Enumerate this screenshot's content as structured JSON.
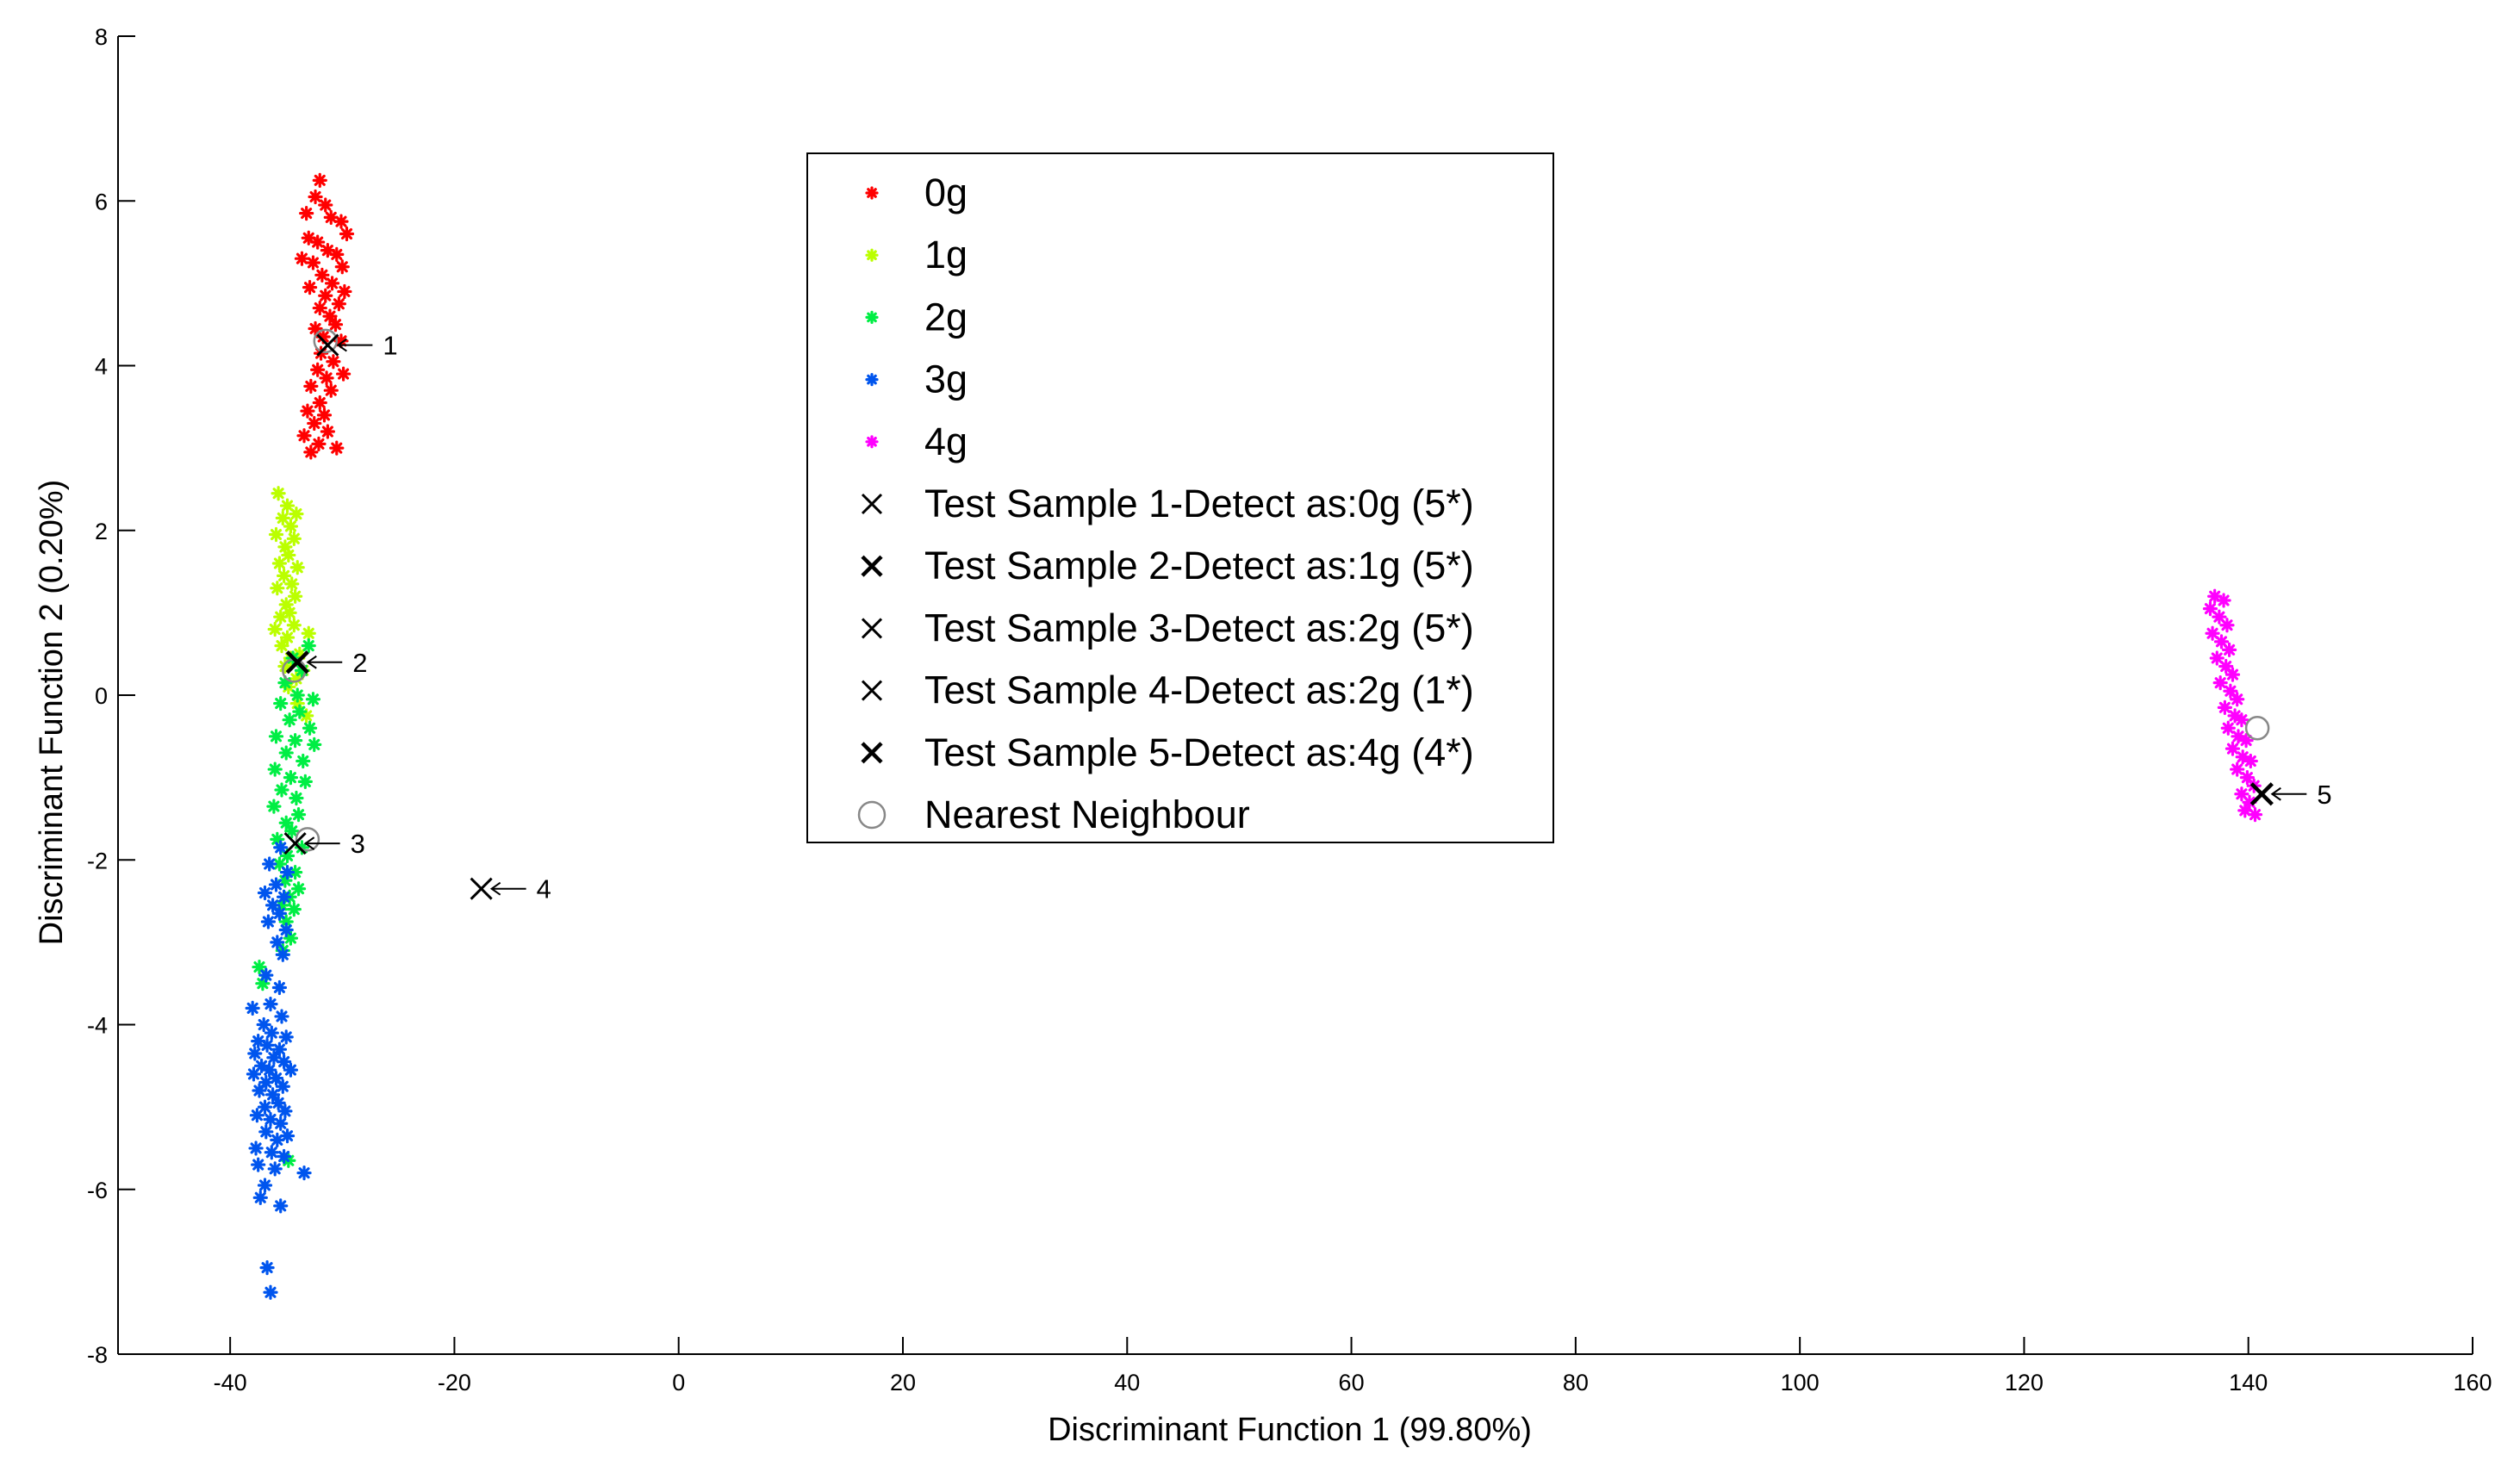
{
  "chart_data": {
    "type": "scatter",
    "title": "",
    "xlabel": "Discriminant Function 1 (99.80%)",
    "ylabel": "Discriminant Function 2 (0.20%)",
    "xlim": [
      -50,
      160
    ],
    "ylim": [
      -8,
      8
    ],
    "xticks": [
      -40,
      -20,
      0,
      20,
      40,
      60,
      80,
      100,
      120,
      140,
      160
    ],
    "yticks": [
      -8,
      -6,
      -4,
      -2,
      0,
      2,
      4,
      6,
      8
    ],
    "grid": false,
    "legend_position": "top-center",
    "series": [
      {
        "name": "0g",
        "color": "#ff0000",
        "marker": "asterisk",
        "points": [
          [
            -32.0,
            6.25
          ],
          [
            -32.4,
            6.05
          ],
          [
            -31.5,
            5.95
          ],
          [
            -33.2,
            5.85
          ],
          [
            -30.1,
            5.75
          ],
          [
            -31.0,
            5.8
          ],
          [
            -29.6,
            5.6
          ],
          [
            -33.0,
            5.55
          ],
          [
            -32.2,
            5.5
          ],
          [
            -31.3,
            5.4
          ],
          [
            -30.5,
            5.35
          ],
          [
            -33.6,
            5.3
          ],
          [
            -32.6,
            5.25
          ],
          [
            -30.0,
            5.2
          ],
          [
            -31.8,
            5.1
          ],
          [
            -30.9,
            5.0
          ],
          [
            -32.9,
            4.95
          ],
          [
            -29.8,
            4.9
          ],
          [
            -31.5,
            4.85
          ],
          [
            -30.3,
            4.75
          ],
          [
            -32.0,
            4.7
          ],
          [
            -31.1,
            4.6
          ],
          [
            -30.6,
            4.5
          ],
          [
            -32.4,
            4.45
          ],
          [
            -31.7,
            4.35
          ],
          [
            -30.1,
            4.3
          ],
          [
            -31.9,
            4.15
          ],
          [
            -30.8,
            4.05
          ],
          [
            -32.2,
            3.95
          ],
          [
            -29.9,
            3.9
          ],
          [
            -31.4,
            3.85
          ],
          [
            -32.8,
            3.75
          ],
          [
            -31.0,
            3.7
          ],
          [
            -32.0,
            3.55
          ],
          [
            -33.1,
            3.45
          ],
          [
            -31.6,
            3.4
          ],
          [
            -32.5,
            3.3
          ],
          [
            -31.3,
            3.2
          ],
          [
            -33.4,
            3.15
          ],
          [
            -32.1,
            3.05
          ],
          [
            -30.5,
            3.0
          ],
          [
            -32.8,
            2.95
          ]
        ]
      },
      {
        "name": "1g",
        "color": "#bbff00",
        "marker": "asterisk",
        "points": [
          [
            -35.7,
            2.45
          ],
          [
            -34.9,
            2.3
          ],
          [
            -34.1,
            2.2
          ],
          [
            -35.3,
            2.15
          ],
          [
            -34.6,
            2.05
          ],
          [
            -35.9,
            1.95
          ],
          [
            -34.3,
            1.9
          ],
          [
            -35.1,
            1.8
          ],
          [
            -34.8,
            1.7
          ],
          [
            -35.6,
            1.6
          ],
          [
            -34.0,
            1.55
          ],
          [
            -35.2,
            1.45
          ],
          [
            -34.5,
            1.35
          ],
          [
            -35.8,
            1.3
          ],
          [
            -34.2,
            1.2
          ],
          [
            -35.0,
            1.1
          ],
          [
            -34.7,
            1.0
          ],
          [
            -35.5,
            0.95
          ],
          [
            -34.3,
            0.85
          ],
          [
            -36.0,
            0.8
          ],
          [
            -33.0,
            0.75
          ],
          [
            -34.9,
            0.7
          ],
          [
            -35.4,
            0.6
          ],
          [
            -33.8,
            0.5
          ],
          [
            -34.6,
            0.45
          ],
          [
            -35.1,
            0.35
          ],
          [
            -33.5,
            0.3
          ],
          [
            -34.1,
            0.2
          ],
          [
            -34.8,
            0.1
          ],
          [
            -34.0,
            -0.1
          ],
          [
            -33.2,
            -0.25
          ]
        ]
      },
      {
        "name": "2g",
        "color": "#00ee44",
        "marker": "asterisk",
        "points": [
          [
            -33.0,
            0.6
          ],
          [
            -34.4,
            0.45
          ],
          [
            -33.6,
            0.3
          ],
          [
            -35.1,
            0.15
          ],
          [
            -34.0,
            0.0
          ],
          [
            -32.6,
            -0.05
          ],
          [
            -35.5,
            -0.1
          ],
          [
            -33.8,
            -0.2
          ],
          [
            -34.7,
            -0.3
          ],
          [
            -32.9,
            -0.4
          ],
          [
            -35.9,
            -0.5
          ],
          [
            -34.2,
            -0.55
          ],
          [
            -32.5,
            -0.6
          ],
          [
            -35.0,
            -0.7
          ],
          [
            -33.5,
            -0.8
          ],
          [
            -36.0,
            -0.9
          ],
          [
            -34.6,
            -1.0
          ],
          [
            -33.3,
            -1.05
          ],
          [
            -35.4,
            -1.15
          ],
          [
            -34.1,
            -1.25
          ],
          [
            -36.1,
            -1.35
          ],
          [
            -33.9,
            -1.45
          ],
          [
            -35.0,
            -1.55
          ],
          [
            -34.5,
            -1.65
          ],
          [
            -35.8,
            -1.75
          ],
          [
            -33.6,
            -1.85
          ],
          [
            -34.9,
            -1.95
          ],
          [
            -35.6,
            -2.05
          ],
          [
            -34.2,
            -2.15
          ],
          [
            -35.1,
            -2.25
          ],
          [
            -33.9,
            -2.35
          ],
          [
            -34.7,
            -2.45
          ],
          [
            -35.4,
            -2.55
          ],
          [
            -34.3,
            -2.6
          ],
          [
            -35.0,
            -2.75
          ],
          [
            -34.6,
            -2.95
          ],
          [
            -35.3,
            -3.1
          ],
          [
            -37.4,
            -3.3
          ],
          [
            -37.1,
            -3.5
          ],
          [
            -34.8,
            -5.65
          ]
        ]
      },
      {
        "name": "3g",
        "color": "#0055ee",
        "marker": "asterisk",
        "points": [
          [
            -35.5,
            -1.85
          ],
          [
            -36.5,
            -2.05
          ],
          [
            -34.9,
            -2.15
          ],
          [
            -35.9,
            -2.3
          ],
          [
            -36.9,
            -2.4
          ],
          [
            -35.2,
            -2.45
          ],
          [
            -36.2,
            -2.55
          ],
          [
            -35.6,
            -2.65
          ],
          [
            -36.6,
            -2.75
          ],
          [
            -35.0,
            -2.85
          ],
          [
            -35.8,
            -3.0
          ],
          [
            -35.3,
            -3.15
          ],
          [
            -36.8,
            -3.4
          ],
          [
            -35.6,
            -3.55
          ],
          [
            -38.0,
            -3.8
          ],
          [
            -36.4,
            -3.75
          ],
          [
            -35.4,
            -3.9
          ],
          [
            -37.0,
            -4.0
          ],
          [
            -36.3,
            -4.1
          ],
          [
            -35.0,
            -4.15
          ],
          [
            -37.5,
            -4.2
          ],
          [
            -36.7,
            -4.25
          ],
          [
            -35.6,
            -4.3
          ],
          [
            -37.8,
            -4.35
          ],
          [
            -36.1,
            -4.4
          ],
          [
            -35.2,
            -4.45
          ],
          [
            -37.2,
            -4.5
          ],
          [
            -36.5,
            -4.55
          ],
          [
            -34.6,
            -4.55
          ],
          [
            -37.9,
            -4.6
          ],
          [
            -35.9,
            -4.65
          ],
          [
            -36.8,
            -4.7
          ],
          [
            -35.3,
            -4.75
          ],
          [
            -37.4,
            -4.8
          ],
          [
            -36.2,
            -4.85
          ],
          [
            -35.7,
            -4.95
          ],
          [
            -36.9,
            -5.0
          ],
          [
            -35.1,
            -5.05
          ],
          [
            -37.6,
            -5.1
          ],
          [
            -36.4,
            -5.15
          ],
          [
            -35.5,
            -5.2
          ],
          [
            -36.8,
            -5.3
          ],
          [
            -34.9,
            -5.35
          ],
          [
            -35.8,
            -5.4
          ],
          [
            -37.7,
            -5.5
          ],
          [
            -36.3,
            -5.55
          ],
          [
            -35.2,
            -5.6
          ],
          [
            -37.5,
            -5.7
          ],
          [
            -36.0,
            -5.75
          ],
          [
            -33.4,
            -5.8
          ],
          [
            -36.9,
            -5.95
          ],
          [
            -37.3,
            -6.1
          ],
          [
            -35.5,
            -6.2
          ],
          [
            -36.7,
            -6.95
          ],
          [
            -36.4,
            -7.25
          ]
        ]
      },
      {
        "name": "4g",
        "color": "#ff00ff",
        "marker": "asterisk",
        "points": [
          [
            137.0,
            1.2
          ],
          [
            137.8,
            1.15
          ],
          [
            136.6,
            1.05
          ],
          [
            137.4,
            0.95
          ],
          [
            138.1,
            0.85
          ],
          [
            136.8,
            0.75
          ],
          [
            137.6,
            0.65
          ],
          [
            138.3,
            0.55
          ],
          [
            137.2,
            0.45
          ],
          [
            138.0,
            0.35
          ],
          [
            138.6,
            0.25
          ],
          [
            137.5,
            0.15
          ],
          [
            138.4,
            0.05
          ],
          [
            139.0,
            -0.05
          ],
          [
            137.9,
            -0.15
          ],
          [
            138.8,
            -0.25
          ],
          [
            139.4,
            -0.3
          ],
          [
            138.2,
            -0.4
          ],
          [
            139.1,
            -0.5
          ],
          [
            139.8,
            -0.55
          ],
          [
            138.6,
            -0.65
          ],
          [
            139.5,
            -0.75
          ],
          [
            140.2,
            -0.8
          ],
          [
            139.0,
            -0.9
          ],
          [
            139.9,
            -1.0
          ],
          [
            140.5,
            -1.1
          ],
          [
            139.4,
            -1.2
          ],
          [
            140.1,
            -1.3
          ],
          [
            139.7,
            -1.4
          ],
          [
            140.6,
            -1.45
          ]
        ]
      }
    ],
    "test_samples": [
      {
        "legend": "Test Sample 1-Detect as:0g (5*)",
        "x": -31.3,
        "y": 4.25,
        "label": "1",
        "bold": false
      },
      {
        "legend": "Test Sample 2-Detect as:1g (5*)",
        "x": -34.0,
        "y": 0.4,
        "label": "2",
        "bold": true
      },
      {
        "legend": "Test Sample 3-Detect as:2g (5*)",
        "x": -34.2,
        "y": -1.8,
        "label": "3",
        "bold": false
      },
      {
        "legend": "Test Sample 4-Detect as:2g (1*)",
        "x": -17.6,
        "y": -2.35,
        "label": "4",
        "bold": false
      },
      {
        "legend": "Test Sample 5-Detect as:4g (4*)",
        "x": 141.2,
        "y": -1.2,
        "label": "5",
        "bold": true
      }
    ],
    "nearest_neighbours": {
      "legend": "Nearest Neighbour",
      "points": [
        [
          -31.5,
          4.3
        ],
        [
          -34.3,
          0.3
        ],
        [
          -33.1,
          -1.75
        ],
        [
          140.8,
          -0.4
        ]
      ]
    }
  }
}
